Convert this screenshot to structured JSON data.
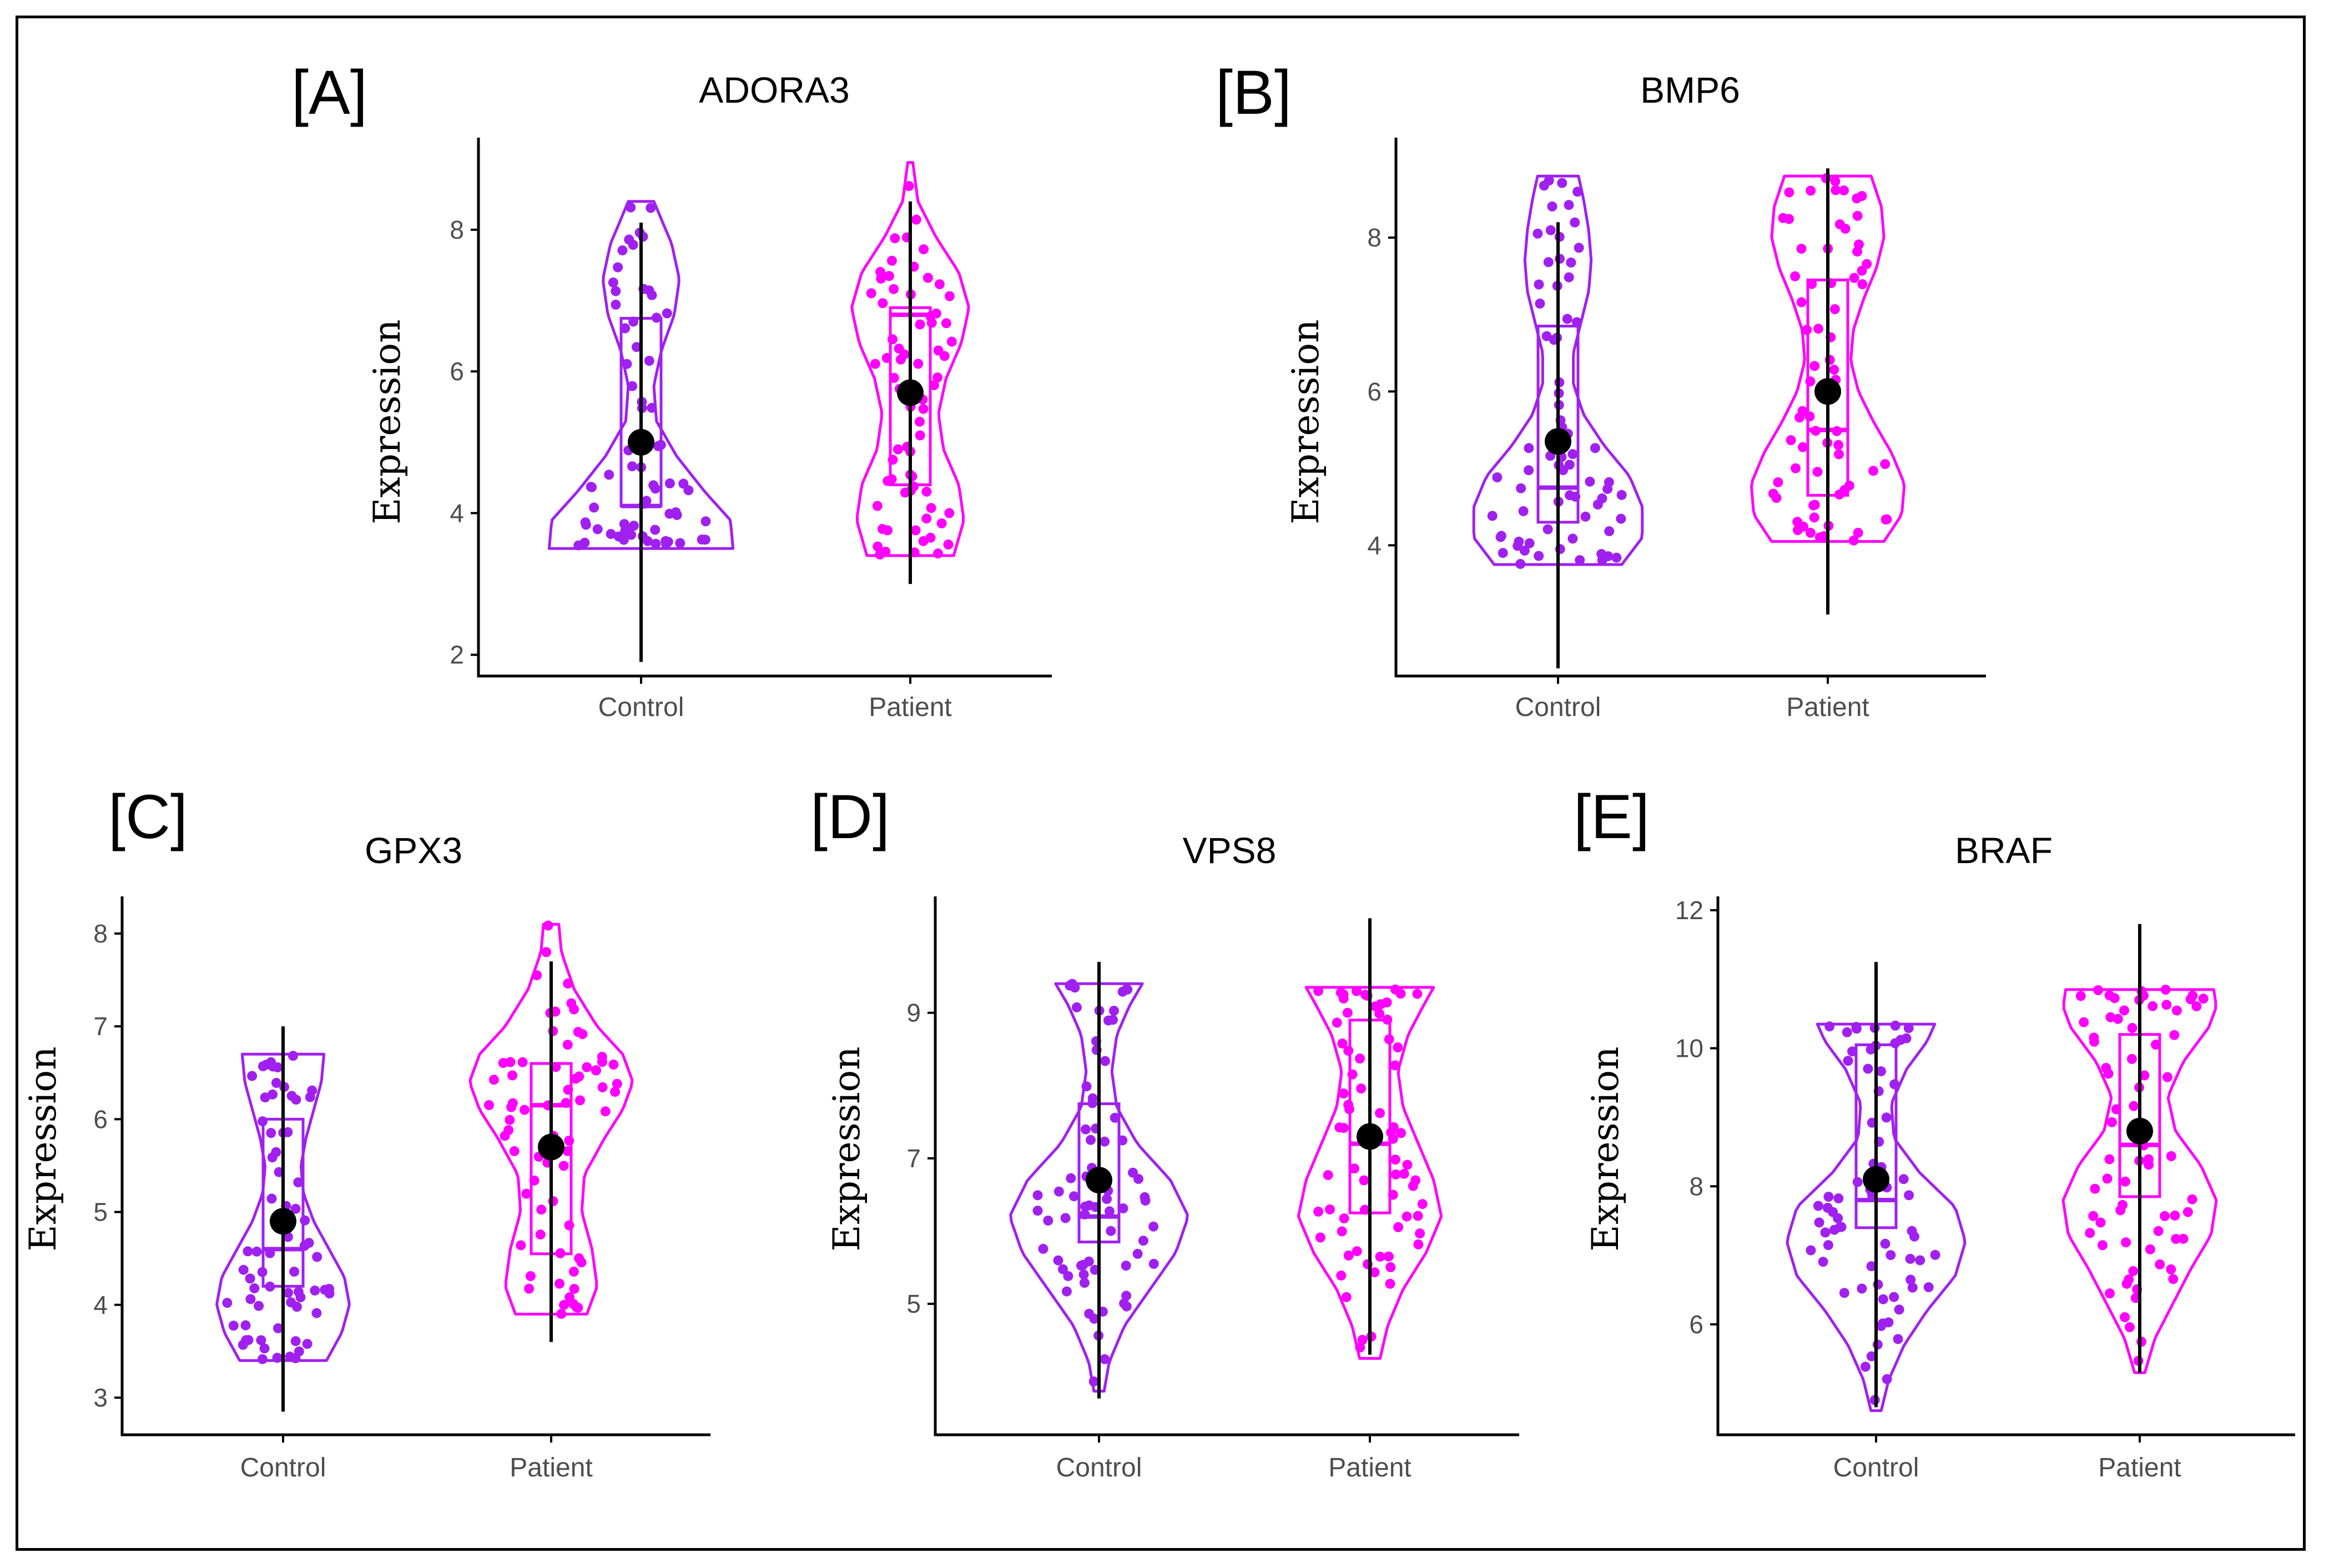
{
  "colors": {
    "control": "#a020f0",
    "patient": "#ff00ff",
    "mean": "#000000",
    "axis": "#000000"
  },
  "chart_data": [
    {
      "type": "violin",
      "panel_label": "[A]",
      "title": "ADORA3",
      "ylabel": "Expression",
      "categories": [
        "Control",
        "Patient"
      ],
      "yticks": [
        2,
        4,
        6,
        8
      ],
      "ylim": [
        1.7,
        9.3
      ],
      "series": [
        {
          "range": [
            3.5,
            8.4
          ],
          "violin_y": [
            3.5,
            3.9,
            4.3,
            4.8,
            5.3,
            5.8,
            6.3,
            6.8,
            7.3,
            7.8,
            8.4
          ],
          "violin_w": [
            0.72,
            0.7,
            0.5,
            0.28,
            0.12,
            0.1,
            0.16,
            0.26,
            0.3,
            0.24,
            0.1
          ],
          "box": {
            "q1": 4.1,
            "median": 4.1,
            "q3": 6.75
          },
          "mean": 5.0,
          "whisker": [
            1.9,
            8.1
          ]
        },
        {
          "range": [
            3.4,
            8.95
          ],
          "violin_y": [
            3.4,
            3.9,
            4.4,
            4.9,
            5.4,
            5.9,
            6.4,
            6.9,
            7.4,
            7.9,
            8.4,
            8.95
          ],
          "violin_w": [
            0.34,
            0.42,
            0.38,
            0.26,
            0.22,
            0.28,
            0.4,
            0.46,
            0.38,
            0.2,
            0.06,
            0.02
          ],
          "box": {
            "q1": 4.4,
            "median": 6.8,
            "q3": 6.9
          },
          "mean": 5.7,
          "whisker": [
            3.0,
            8.4
          ]
        }
      ]
    },
    {
      "type": "violin",
      "panel_label": "[B]",
      "title": "BMP6",
      "ylabel": "Expression",
      "categories": [
        "Control",
        "Patient"
      ],
      "yticks": [
        4,
        6,
        8
      ],
      "ylim": [
        2.3,
        9.3
      ],
      "series": [
        {
          "range": [
            3.75,
            8.8
          ],
          "violin_y": [
            3.75,
            4.1,
            4.5,
            4.9,
            5.3,
            5.7,
            6.1,
            6.5,
            6.9,
            7.3,
            7.7,
            8.1,
            8.5,
            8.8
          ],
          "violin_w": [
            0.5,
            0.66,
            0.66,
            0.56,
            0.36,
            0.2,
            0.12,
            0.12,
            0.18,
            0.24,
            0.26,
            0.24,
            0.2,
            0.16
          ],
          "box": {
            "q1": 4.3,
            "median": 4.75,
            "q3": 6.85
          },
          "mean": 5.35,
          "whisker": [
            2.4,
            8.2
          ]
        },
        {
          "range": [
            4.05,
            8.8
          ],
          "violin_y": [
            4.05,
            4.4,
            4.8,
            5.2,
            5.6,
            6.0,
            6.4,
            6.8,
            7.2,
            7.6,
            8.0,
            8.4,
            8.8
          ],
          "violin_w": [
            0.44,
            0.58,
            0.6,
            0.5,
            0.36,
            0.24,
            0.18,
            0.2,
            0.28,
            0.38,
            0.44,
            0.42,
            0.34
          ],
          "box": {
            "q1": 4.65,
            "median": 5.5,
            "q3": 7.45
          },
          "mean": 6.0,
          "whisker": [
            3.1,
            8.9
          ]
        }
      ]
    },
    {
      "type": "violin",
      "panel_label": "[C]",
      "title": "GPX3",
      "ylabel": "Expression",
      "categories": [
        "Control",
        "Patient"
      ],
      "yticks": [
        3,
        4,
        5,
        6,
        7,
        8
      ],
      "ylim": [
        2.6,
        8.4
      ],
      "series": [
        {
          "range": [
            3.4,
            6.7
          ],
          "violin_y": [
            3.4,
            3.7,
            4.0,
            4.3,
            4.6,
            4.9,
            5.2,
            5.5,
            5.8,
            6.1,
            6.4,
            6.7
          ],
          "violin_w": [
            0.34,
            0.46,
            0.52,
            0.48,
            0.36,
            0.24,
            0.16,
            0.14,
            0.18,
            0.24,
            0.3,
            0.32
          ],
          "box": {
            "q1": 4.2,
            "median": 4.6,
            "q3": 6.0
          },
          "mean": 4.9,
          "whisker": [
            2.85,
            7.0
          ]
        },
        {
          "range": [
            3.9,
            8.1
          ],
          "violin_y": [
            3.9,
            4.2,
            4.6,
            5.0,
            5.4,
            5.8,
            6.1,
            6.4,
            6.7,
            7.0,
            7.4,
            7.8,
            8.1
          ],
          "violin_w": [
            0.28,
            0.36,
            0.32,
            0.24,
            0.26,
            0.42,
            0.56,
            0.64,
            0.56,
            0.36,
            0.18,
            0.08,
            0.06
          ],
          "box": {
            "q1": 4.55,
            "median": 6.15,
            "q3": 6.6
          },
          "mean": 5.7,
          "whisker": [
            3.6,
            7.7
          ]
        }
      ]
    },
    {
      "type": "violin",
      "panel_label": "[D]",
      "title": "VPS8",
      "ylabel": "Expression",
      "categories": [
        "Control",
        "Patient"
      ],
      "yticks": [
        5,
        7,
        9
      ],
      "ylim": [
        3.2,
        10.6
      ],
      "series": [
        {
          "range": [
            3.8,
            9.4
          ],
          "violin_y": [
            3.8,
            4.2,
            4.7,
            5.2,
            5.7,
            6.2,
            6.7,
            7.2,
            7.7,
            8.2,
            8.7,
            9.1,
            9.4
          ],
          "violin_w": [
            0.04,
            0.08,
            0.2,
            0.4,
            0.6,
            0.7,
            0.56,
            0.3,
            0.14,
            0.1,
            0.14,
            0.24,
            0.34
          ],
          "box": {
            "q1": 5.85,
            "median": 6.2,
            "q3": 7.75
          },
          "mean": 6.7,
          "whisker": [
            3.7,
            9.7
          ]
        },
        {
          "range": [
            4.25,
            9.35
          ],
          "violin_y": [
            4.25,
            4.7,
            5.2,
            5.7,
            6.2,
            6.7,
            7.2,
            7.7,
            8.2,
            8.7,
            9.1,
            9.35
          ],
          "violin_w": [
            0.08,
            0.14,
            0.26,
            0.44,
            0.56,
            0.5,
            0.38,
            0.26,
            0.22,
            0.3,
            0.42,
            0.5
          ],
          "box": {
            "q1": 6.25,
            "median": 7.2,
            "q3": 8.9
          },
          "mean": 7.3,
          "whisker": [
            4.3,
            10.3
          ]
        }
      ]
    },
    {
      "type": "violin",
      "panel_label": "[E]",
      "title": "BRAF",
      "ylabel": "Expression",
      "categories": [
        "Control",
        "Patient"
      ],
      "yticks": [
        6,
        8,
        10,
        12
      ],
      "ylim": [
        4.4,
        12.2
      ],
      "series": [
        {
          "range": [
            4.75,
            10.35
          ],
          "violin_y": [
            4.75,
            5.2,
            5.7,
            6.2,
            6.7,
            7.2,
            7.7,
            8.2,
            8.7,
            9.2,
            9.7,
            10.1,
            10.35
          ],
          "violin_w": [
            0.04,
            0.1,
            0.22,
            0.4,
            0.62,
            0.7,
            0.62,
            0.34,
            0.14,
            0.12,
            0.24,
            0.4,
            0.46
          ],
          "box": {
            "q1": 7.4,
            "median": 7.8,
            "q3": 10.05
          },
          "mean": 8.1,
          "whisker": [
            4.8,
            11.25
          ]
        },
        {
          "range": [
            5.3,
            10.85
          ],
          "violin_y": [
            5.3,
            5.8,
            6.3,
            6.8,
            7.3,
            7.8,
            8.3,
            8.8,
            9.3,
            9.8,
            10.3,
            10.6,
            10.85
          ],
          "violin_w": [
            0.04,
            0.12,
            0.26,
            0.4,
            0.56,
            0.6,
            0.48,
            0.28,
            0.22,
            0.34,
            0.54,
            0.6,
            0.58
          ],
          "box": {
            "q1": 7.85,
            "median": 8.6,
            "q3": 10.2
          },
          "mean": 8.8,
          "whisker": [
            5.3,
            11.8
          ]
        }
      ]
    }
  ]
}
